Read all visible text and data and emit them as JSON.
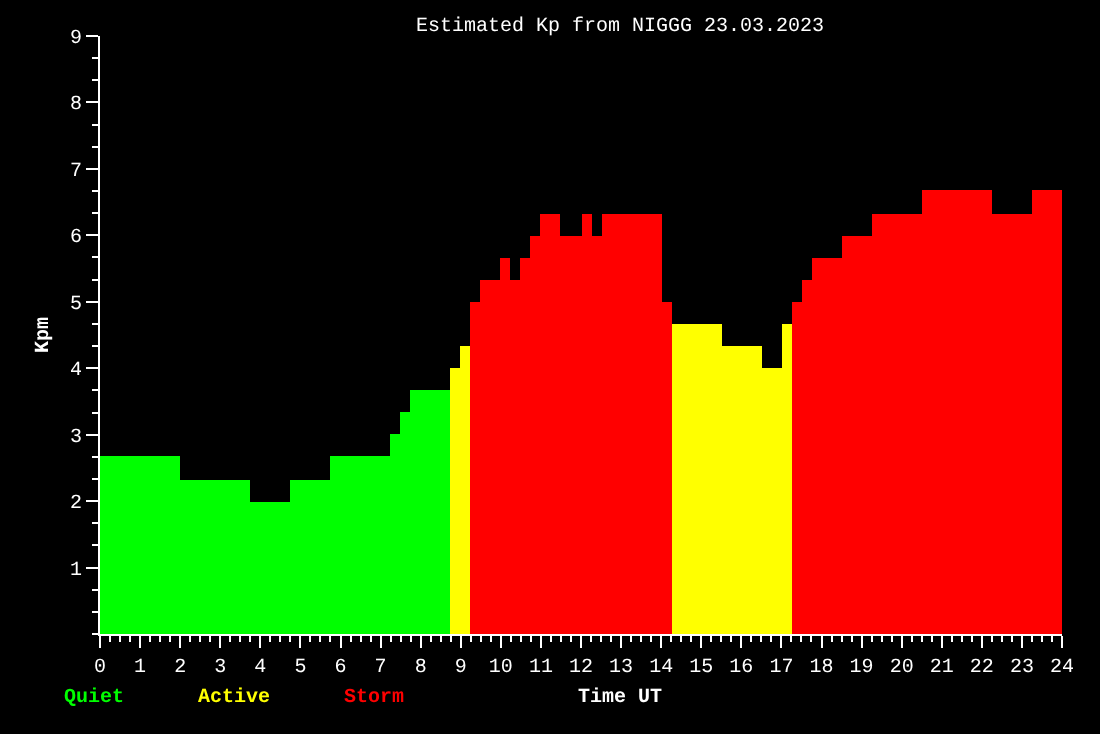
{
  "chart_data": {
    "type": "bar",
    "title": "Estimated Kp from NIGGG 23.03.2023",
    "xlabel": "Time UT",
    "ylabel": "Kpm",
    "series": [
      {
        "name": "Quiet",
        "color": "#00ff00",
        "x": [
          1.0,
          2.875,
          4.25,
          5.25,
          6.5,
          7.375,
          7.625,
          8.25
        ],
        "values": [
          2.67,
          2.33,
          2.0,
          2.33,
          2.67,
          3.0,
          3.33,
          3.67
        ]
      },
      {
        "name": "Active",
        "color": "#ffff00",
        "x": [
          8.875,
          9.125,
          14.875,
          16.0,
          16.75,
          17.125
        ],
        "values": [
          4.0,
          4.33,
          4.67,
          4.33,
          4.0,
          4.67
        ]
      },
      {
        "name": "Storm",
        "color": "#ff0000",
        "x": [
          9.375,
          9.75,
          10.125,
          10.375,
          10.625,
          10.875,
          11.25,
          11.75,
          12.125,
          12.375,
          13.25,
          14.125,
          17.375,
          17.625,
          18.125,
          18.875,
          19.875,
          21.375,
          22.75,
          23.625
        ],
        "values": [
          5.0,
          5.33,
          5.67,
          5.33,
          5.67,
          6.0,
          6.33,
          6.0,
          6.33,
          6.0,
          6.33,
          5.0,
          5.0,
          5.33,
          5.67,
          6.0,
          6.33,
          6.67,
          6.33,
          6.67
        ]
      }
    ],
    "xlim": [
      0,
      24
    ],
    "xticks": [
      0,
      1,
      2,
      3,
      4,
      5,
      6,
      7,
      8,
      9,
      10,
      11,
      12,
      13,
      14,
      15,
      16,
      17,
      18,
      19,
      20,
      21,
      22,
      23,
      24
    ],
    "ylim": [
      0,
      9
    ],
    "yticks": [
      1,
      2,
      3,
      4,
      5,
      6,
      7,
      8,
      9
    ],
    "grid": false,
    "legend": "bottom left"
  }
}
